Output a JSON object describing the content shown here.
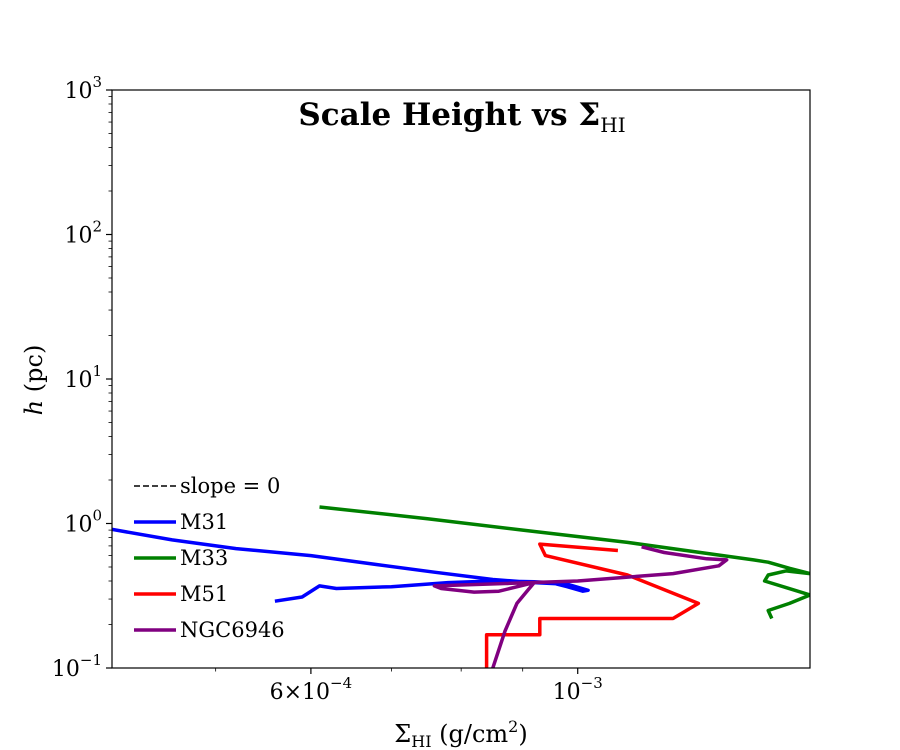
{
  "chart_data": {
    "type": "line",
    "title": "Scale Height vs Σ",
    "title_sub": "HI",
    "xlabel_symbol": "Σ",
    "xlabel_sub": "HI",
    "xlabel_units": " (g/cm",
    "xlabel_units_sup": "2",
    "xlabel_units_close": ")",
    "ylabel_italic": "h",
    "ylabel_units": " (pc)",
    "x_scale": "log",
    "y_scale": "log",
    "xlim": [
      0.00041,
      0.00156
    ],
    "ylim": [
      0.1,
      1000
    ],
    "grid": false,
    "legend_placement": "lower-left",
    "x_ticks": [
      {
        "value": 0.0006,
        "mantissa": "6×10",
        "exp": "−4"
      },
      {
        "value": 0.001,
        "mantissa": "10",
        "exp": "−3"
      }
    ],
    "y_ticks": [
      {
        "value": 0.1,
        "mantissa": "10",
        "exp": "−1"
      },
      {
        "value": 1,
        "mantissa": "10",
        "exp": "0"
      },
      {
        "value": 10,
        "mantissa": "10",
        "exp": "1"
      },
      {
        "value": 100,
        "mantissa": "10",
        "exp": "2"
      },
      {
        "value": 1000,
        "mantissa": "10",
        "exp": "3"
      }
    ],
    "legend": [
      {
        "label": "slope = 0",
        "color": "#000000",
        "dashed": true
      },
      {
        "label": "M31",
        "color": "#0000ff",
        "dashed": false
      },
      {
        "label": "M33",
        "color": "#008000",
        "dashed": false
      },
      {
        "label": "M51",
        "color": "#ff0000",
        "dashed": false
      },
      {
        "label": "NGC6946",
        "color": "#800080",
        "dashed": false
      }
    ],
    "series": [
      {
        "name": "M31",
        "color": "#0000ff",
        "points": [
          [
            0.00041,
            0.91
          ],
          [
            0.00046,
            0.77
          ],
          [
            0.00052,
            0.67
          ],
          [
            0.0006,
            0.6
          ],
          [
            0.00068,
            0.52
          ],
          [
            0.00076,
            0.46
          ],
          [
            0.00085,
            0.41
          ],
          [
            0.00092,
            0.39
          ],
          [
            0.00098,
            0.38
          ],
          [
            0.00102,
            0.345
          ],
          [
            0.00101,
            0.34
          ],
          [
            0.00098,
            0.365
          ],
          [
            0.00095,
            0.39
          ],
          [
            0.00092,
            0.395
          ],
          [
            0.00085,
            0.4
          ],
          [
            0.00078,
            0.39
          ],
          [
            0.0007,
            0.365
          ],
          [
            0.00063,
            0.355
          ],
          [
            0.00061,
            0.37
          ],
          [
            0.00059,
            0.31
          ],
          [
            0.00056,
            0.29
          ]
        ]
      },
      {
        "name": "M33",
        "color": "#008000",
        "points": [
          [
            0.00061,
            1.3
          ],
          [
            0.00075,
            1.08
          ],
          [
            0.0009,
            0.9
          ],
          [
            0.0011,
            0.74
          ],
          [
            0.0013,
            0.61
          ],
          [
            0.0014,
            0.56
          ],
          [
            0.00144,
            0.54
          ],
          [
            0.0015,
            0.49
          ],
          [
            0.00156,
            0.45
          ],
          [
            0.00149,
            0.47
          ],
          [
            0.00144,
            0.44
          ],
          [
            0.00143,
            0.4
          ],
          [
            0.00149,
            0.36
          ],
          [
            0.00156,
            0.32
          ],
          [
            0.0015,
            0.28
          ],
          [
            0.00144,
            0.25
          ],
          [
            0.00145,
            0.22
          ]
        ]
      },
      {
        "name": "M51",
        "color": "#ff0000",
        "points": [
          [
            0.00108,
            0.65
          ],
          [
            0.00093,
            0.72
          ],
          [
            0.00094,
            0.6
          ],
          [
            0.0011,
            0.44
          ],
          [
            0.00126,
            0.28
          ],
          [
            0.0012,
            0.22
          ],
          [
            0.00093,
            0.22
          ],
          [
            0.00093,
            0.17
          ],
          [
            0.00084,
            0.17
          ],
          [
            0.00084,
            0.1
          ]
        ]
      },
      {
        "name": "NGC6946",
        "color": "#800080",
        "points": [
          [
            0.00085,
            0.1
          ],
          [
            0.00087,
            0.18
          ],
          [
            0.00089,
            0.28
          ],
          [
            0.00091,
            0.35
          ],
          [
            0.00092,
            0.39
          ],
          [
            0.00086,
            0.34
          ],
          [
            0.00082,
            0.335
          ],
          [
            0.00077,
            0.355
          ],
          [
            0.00076,
            0.37
          ],
          [
            0.001,
            0.4
          ],
          [
            0.0012,
            0.45
          ],
          [
            0.00131,
            0.51
          ],
          [
            0.00133,
            0.56
          ],
          [
            0.00128,
            0.57
          ],
          [
            0.00118,
            0.63
          ],
          [
            0.00113,
            0.69
          ]
        ]
      }
    ]
  }
}
